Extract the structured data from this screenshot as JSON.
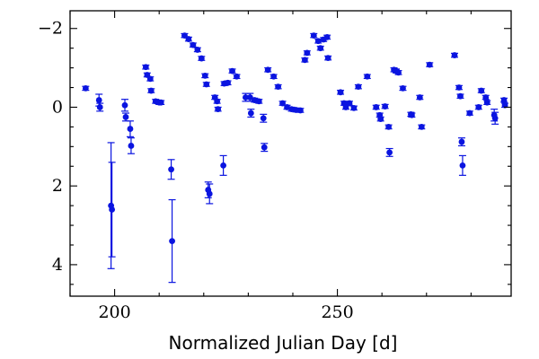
{
  "chart_data": {
    "type": "scatter",
    "xlabel": "Normalized Julian Day [d]",
    "ylabel": "",
    "title": "",
    "xlim": [
      190,
      289
    ],
    "ylim": [
      4.8,
      -2.45
    ],
    "y_inverted": true,
    "grid": false,
    "xticks": [
      200,
      250
    ],
    "xtick_labels": [
      "200",
      "250"
    ],
    "yticks": [
      -2,
      0,
      2,
      4
    ],
    "ytick_labels": [
      "−2",
      "0",
      "2",
      "4"
    ],
    "color": "#0a14e0",
    "points": [
      {
        "x": 193.5,
        "y": -0.48,
        "err": 0.05
      },
      {
        "x": 196.5,
        "y": -0.18,
        "err": 0.15
      },
      {
        "x": 196.7,
        "y": 0.0,
        "err": 0.1
      },
      {
        "x": 199.2,
        "y": 2.5,
        "err": 1.6
      },
      {
        "x": 199.4,
        "y": 2.6,
        "err": 1.2
      },
      {
        "x": 202.3,
        "y": -0.05,
        "err": 0.15
      },
      {
        "x": 202.5,
        "y": 0.25,
        "err": 0.1
      },
      {
        "x": 203.5,
        "y": 0.55,
        "err": 0.2
      },
      {
        "x": 203.7,
        "y": 0.98,
        "err": 0.2
      },
      {
        "x": 207.0,
        "y": -1.02,
        "err": 0.05
      },
      {
        "x": 207.3,
        "y": -0.82,
        "err": 0.05
      },
      {
        "x": 208.0,
        "y": -0.72,
        "err": 0.05
      },
      {
        "x": 208.2,
        "y": -0.42,
        "err": 0.05
      },
      {
        "x": 209.2,
        "y": -0.15,
        "err": 0.05
      },
      {
        "x": 210.0,
        "y": -0.12,
        "err": 0.05
      },
      {
        "x": 210.4,
        "y": -0.12,
        "err": 0.05
      },
      {
        "x": 212.7,
        "y": 1.58,
        "err": 0.25
      },
      {
        "x": 212.9,
        "y": 3.4,
        "err": 1.05
      },
      {
        "x": 215.7,
        "y": -1.82,
        "err": 0.05
      },
      {
        "x": 216.6,
        "y": -1.73,
        "err": 0.05
      },
      {
        "x": 217.6,
        "y": -1.58,
        "err": 0.05
      },
      {
        "x": 218.6,
        "y": -1.46,
        "err": 0.05
      },
      {
        "x": 219.5,
        "y": -1.24,
        "err": 0.05
      },
      {
        "x": 220.3,
        "y": -0.8,
        "err": 0.05
      },
      {
        "x": 220.6,
        "y": -0.58,
        "err": 0.05
      },
      {
        "x": 221.0,
        "y": 2.1,
        "err": 0.2
      },
      {
        "x": 221.3,
        "y": 2.2,
        "err": 0.25
      },
      {
        "x": 222.5,
        "y": -0.25,
        "err": 0.05
      },
      {
        "x": 223.0,
        "y": -0.15,
        "err": 0.05
      },
      {
        "x": 223.2,
        "y": 0.05,
        "err": 0.05
      },
      {
        "x": 224.4,
        "y": 1.48,
        "err": 0.25
      },
      {
        "x": 224.6,
        "y": -0.6,
        "err": 0.05
      },
      {
        "x": 225.4,
        "y": -0.62,
        "err": 0.05
      },
      {
        "x": 226.4,
        "y": -0.92,
        "err": 0.05
      },
      {
        "x": 227.4,
        "y": -0.78,
        "err": 0.05
      },
      {
        "x": 229.4,
        "y": -0.25,
        "err": 0.1
      },
      {
        "x": 230.4,
        "y": -0.25,
        "err": 0.1
      },
      {
        "x": 230.6,
        "y": 0.15,
        "err": 0.1
      },
      {
        "x": 231.4,
        "y": -0.18,
        "err": 0.05
      },
      {
        "x": 232.4,
        "y": -0.15,
        "err": 0.05
      },
      {
        "x": 233.4,
        "y": 0.28,
        "err": 0.1
      },
      {
        "x": 233.6,
        "y": 1.02,
        "err": 0.1
      },
      {
        "x": 234.4,
        "y": -0.95,
        "err": 0.05
      },
      {
        "x": 235.7,
        "y": -0.78,
        "err": 0.05
      },
      {
        "x": 236.7,
        "y": -0.52,
        "err": 0.05
      },
      {
        "x": 237.7,
        "y": -0.1,
        "err": 0.05
      },
      {
        "x": 238.7,
        "y": 0.0,
        "err": 0.05
      },
      {
        "x": 239.7,
        "y": 0.05,
        "err": 0.05
      },
      {
        "x": 240.7,
        "y": 0.07,
        "err": 0.05
      },
      {
        "x": 241.7,
        "y": 0.08,
        "err": 0.05
      },
      {
        "x": 242.7,
        "y": -1.2,
        "err": 0.05
      },
      {
        "x": 243.2,
        "y": -1.38,
        "err": 0.05
      },
      {
        "x": 244.7,
        "y": -1.82,
        "err": 0.05
      },
      {
        "x": 245.7,
        "y": -1.68,
        "err": 0.05
      },
      {
        "x": 246.2,
        "y": -1.5,
        "err": 0.05
      },
      {
        "x": 246.9,
        "y": -1.72,
        "err": 0.05
      },
      {
        "x": 247.7,
        "y": -1.78,
        "err": 0.05
      },
      {
        "x": 247.9,
        "y": -1.25,
        "err": 0.05
      },
      {
        "x": 250.7,
        "y": -0.38,
        "err": 0.05
      },
      {
        "x": 251.5,
        "y": -0.1,
        "err": 0.05
      },
      {
        "x": 251.9,
        "y": 0.0,
        "err": 0.05
      },
      {
        "x": 252.7,
        "y": -0.1,
        "err": 0.05
      },
      {
        "x": 253.7,
        "y": 0.02,
        "err": 0.05
      },
      {
        "x": 254.7,
        "y": -0.52,
        "err": 0.05
      },
      {
        "x": 256.7,
        "y": -0.78,
        "err": 0.05
      },
      {
        "x": 258.7,
        "y": 0.0,
        "err": 0.05
      },
      {
        "x": 259.5,
        "y": 0.2,
        "err": 0.05
      },
      {
        "x": 259.7,
        "y": 0.3,
        "err": 0.05
      },
      {
        "x": 260.7,
        "y": -0.02,
        "err": 0.05
      },
      {
        "x": 261.5,
        "y": 0.5,
        "err": 0.05
      },
      {
        "x": 261.7,
        "y": 1.15,
        "err": 0.1
      },
      {
        "x": 262.7,
        "y": -0.95,
        "err": 0.05
      },
      {
        "x": 263.2,
        "y": -0.92,
        "err": 0.05
      },
      {
        "x": 263.7,
        "y": -0.88,
        "err": 0.05
      },
      {
        "x": 264.7,
        "y": -0.48,
        "err": 0.05
      },
      {
        "x": 266.5,
        "y": 0.18,
        "err": 0.05
      },
      {
        "x": 266.7,
        "y": 0.2,
        "err": 0.05
      },
      {
        "x": 268.5,
        "y": -0.25,
        "err": 0.05
      },
      {
        "x": 268.9,
        "y": 0.5,
        "err": 0.05
      },
      {
        "x": 270.7,
        "y": -1.08,
        "err": 0.05
      },
      {
        "x": 276.3,
        "y": -1.32,
        "err": 0.05
      },
      {
        "x": 277.3,
        "y": -0.5,
        "err": 0.05
      },
      {
        "x": 277.6,
        "y": -0.28,
        "err": 0.05
      },
      {
        "x": 277.9,
        "y": 0.88,
        "err": 0.1
      },
      {
        "x": 278.1,
        "y": 1.48,
        "err": 0.25
      },
      {
        "x": 279.7,
        "y": 0.15,
        "err": 0.05
      },
      {
        "x": 281.7,
        "y": 0.0,
        "err": 0.05
      },
      {
        "x": 282.3,
        "y": -0.42,
        "err": 0.05
      },
      {
        "x": 283.3,
        "y": -0.25,
        "err": 0.05
      },
      {
        "x": 283.6,
        "y": -0.12,
        "err": 0.05
      },
      {
        "x": 285.2,
        "y": 0.2,
        "err": 0.15
      },
      {
        "x": 285.4,
        "y": 0.28,
        "err": 0.15
      },
      {
        "x": 287.4,
        "y": -0.18,
        "err": 0.05
      },
      {
        "x": 287.6,
        "y": -0.05,
        "err": 0.05
      }
    ]
  }
}
